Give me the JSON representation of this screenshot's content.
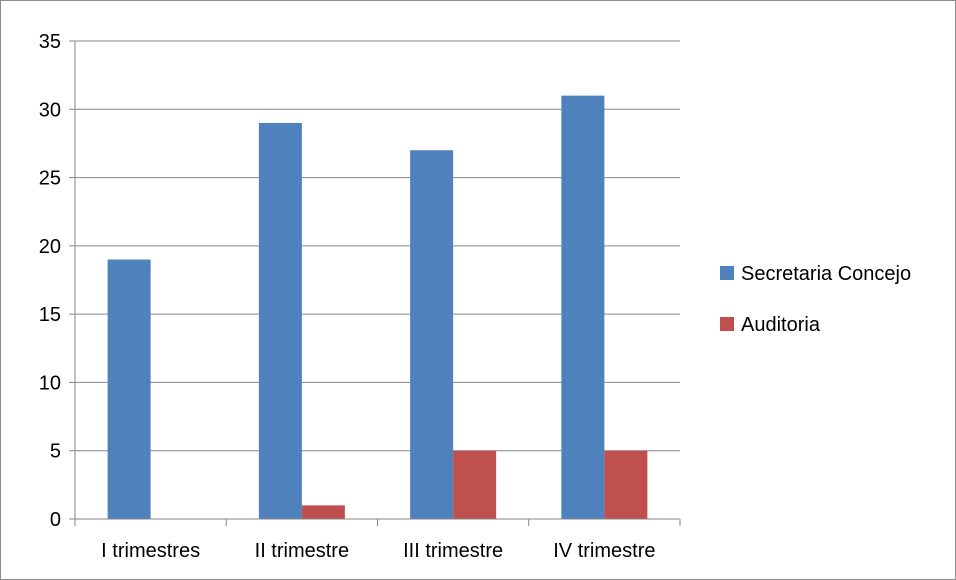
{
  "chart_data": {
    "type": "bar",
    "categories": [
      "I trimestres",
      "II trimestre",
      "III trimestre",
      "IV trimestre"
    ],
    "series": [
      {
        "name": "Secretaria Concejo",
        "color": "#4f81bd",
        "values": [
          19,
          29,
          27,
          31
        ]
      },
      {
        "name": "Auditoria",
        "color": "#c0504d",
        "values": [
          0,
          1,
          5,
          5
        ]
      }
    ],
    "ylim": [
      0,
      35
    ],
    "yticks": [
      0,
      5,
      10,
      15,
      20,
      25,
      30,
      35
    ],
    "grid": true,
    "legend": "right",
    "title": "",
    "xlabel": "",
    "ylabel": ""
  }
}
